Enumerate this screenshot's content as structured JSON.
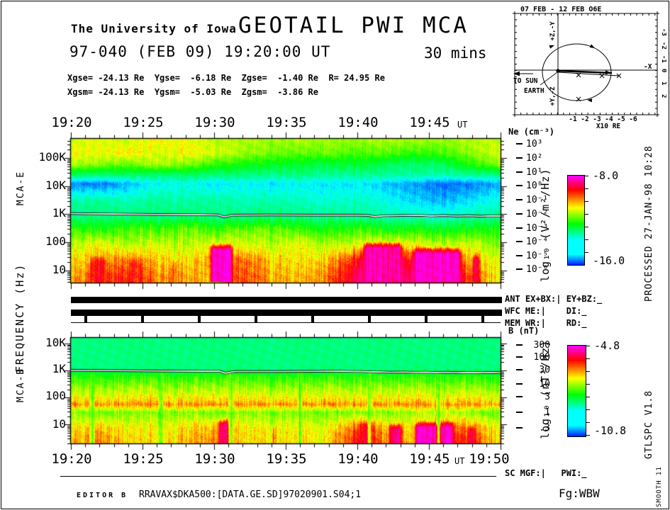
{
  "header": {
    "institution": "The University of Iowa",
    "title": "GEOTAIL PWI MCA",
    "date_line": "97-040 (FEB 09) 19:20:00 UT",
    "duration": "30 mins",
    "coords_line1": "Xgse= -24.13 Re  Ygse=  -6.18 Re  Zgse=  -1.40 Re  R= 24.95 Re",
    "coords_line2": "Xgsm= -24.13 Re  Ygsm=  -5.03 Re  Zgsm=  -3.86 Re"
  },
  "orbit_inset": {
    "title": "07 FEB - 12 FEB  O6E",
    "axis_top": "+Z,-Y",
    "axis_bottom": "+Y,-Z",
    "axis_right": "-X",
    "to_sun": "TO SUN",
    "earth": "EARTH",
    "x_unit": "X10 RE",
    "x_ticks": [
      "-1",
      "-2",
      "-3",
      "-4",
      "-5",
      "-6"
    ],
    "y_ticks": [
      "-3",
      "-2",
      "-1",
      "0",
      "1",
      "2"
    ]
  },
  "axes": {
    "top_time_labels": [
      "19:20",
      "19:25",
      "19:30",
      "19:35",
      "19:40",
      "19:45"
    ],
    "bottom_time_labels": [
      "19:20",
      "19:25",
      "19:30",
      "19:35",
      "19:40",
      "19:45",
      "19:50"
    ],
    "ut": "UT",
    "mca_e_freq_labels": [
      "100K",
      "10K",
      "1K",
      "100",
      "10"
    ],
    "mca_b_freq_labels": [
      "10K",
      "1K",
      "100",
      "10"
    ],
    "ylabel_mca_e": "MCA-E",
    "ylabel_frequency": "FREQUENCY (Hz)",
    "ylabel_mca_b": "MCA-B"
  },
  "ne_scale": {
    "label": "Ne (cm⁻³)",
    "values": [
      "10³",
      "10²",
      "10¹",
      "10⁰",
      "10⁻¹",
      "10⁻²",
      "10⁻³",
      "10⁻⁴",
      "10⁻⁵",
      "10⁻⁶"
    ]
  },
  "b_scale": {
    "label": "B (nT)",
    "values": [
      "300",
      "100",
      "30",
      "10",
      "3",
      "1",
      ".3"
    ]
  },
  "colorbar_e": {
    "max": "-8.0",
    "min": "-16.0",
    "unit": "log₁₀ (V²/m²/Hz)"
  },
  "colorbar_b": {
    "max": "-4.8",
    "min": "-10.8",
    "unit": "log₁₀ (nT²/Hz)"
  },
  "status": {
    "ant": "ANT EX+BX:| EY+BZ:_",
    "wfc": "WFC ME:|    DI:_",
    "mem": "MEM WR:|    RD:_",
    "sc_mgf": "SC MGF:|   PWI:_"
  },
  "sidebar_right": {
    "processed": "PROCESSED 27-JAN-98  10:28",
    "version": "GTLSPC    V1.8",
    "smooth": "SMOOTH 11"
  },
  "footer": {
    "editor": "EDITOR B",
    "file": "RRAVAX$DKA500:[DATA.GE.SD]97020901.S04;1",
    "fg": "Fg:WBW"
  },
  "chart_data": [
    {
      "type": "heatmap",
      "name": "MCA-E electric field spectrogram",
      "x_start": "19:20:00 UT",
      "x_minutes": 30,
      "ylabel": "Frequency (Hz)",
      "freq_top": 480000,
      "freq_bottom": 3.7,
      "zunit": "log₁₀ (V²/m²/Hz)",
      "zmax": -8.0,
      "zmin": -16.0,
      "bands": [
        {
          "f": 400000,
          "levels": [
            0.58,
            0.6,
            0.58,
            0.62,
            0.6,
            0.57,
            0.55,
            0.54,
            0.55,
            0.54,
            0.53,
            0.55,
            0.54,
            0.53,
            0.56,
            0.58
          ]
        },
        {
          "f": 150000,
          "levels": [
            0.62,
            0.6,
            0.64,
            0.58,
            0.62,
            0.59,
            0.54,
            0.51,
            0.49,
            0.51,
            0.47,
            0.49,
            0.45,
            0.47,
            0.53,
            0.6
          ]
        },
        {
          "f": 60000,
          "levels": [
            0.56,
            0.53,
            0.5,
            0.56,
            0.52,
            0.46,
            0.42,
            0.4,
            0.38,
            0.36,
            0.38,
            0.34,
            0.32,
            0.34,
            0.44,
            0.54
          ]
        },
        {
          "f": 25000,
          "levels": [
            0.33,
            0.31,
            0.33,
            0.31,
            0.33,
            0.31,
            0.3,
            0.29,
            0.3,
            0.28,
            0.28,
            0.28,
            0.27,
            0.26,
            0.28,
            0.3
          ]
        },
        {
          "f": 12000,
          "levels": [
            0.08,
            0.06,
            0.12,
            0.18,
            0.2,
            0.16,
            0.18,
            0.16,
            0.18,
            0.16,
            0.17,
            0.13,
            0.1,
            0.05,
            0.07,
            0.12
          ]
        },
        {
          "f": 3000,
          "levels": [
            0.26,
            0.28,
            0.25,
            0.28,
            0.26,
            0.28,
            0.24,
            0.26,
            0.24,
            0.22,
            0.24,
            0.2,
            0.15,
            0.12,
            0.16,
            0.22
          ]
        },
        {
          "f": 800,
          "levels": [
            0.3,
            0.31,
            0.32,
            0.3,
            0.32,
            0.3,
            0.3,
            0.32,
            0.3,
            0.3,
            0.28,
            0.27,
            0.25,
            0.23,
            0.27,
            0.3
          ]
        },
        {
          "f": 300,
          "levels": [
            0.46,
            0.42,
            0.48,
            0.45,
            0.5,
            0.45,
            0.48,
            0.5,
            0.45,
            0.42,
            0.45,
            0.41,
            0.42,
            0.39,
            0.41,
            0.45
          ]
        },
        {
          "f": 90,
          "levels": [
            0.56,
            0.61,
            0.55,
            0.58,
            0.55,
            0.6,
            0.58,
            0.56,
            0.6,
            0.55,
            0.58,
            0.62,
            0.6,
            0.56,
            0.58,
            0.52
          ]
        },
        {
          "f": 25,
          "levels": [
            0.63,
            0.68,
            0.72,
            0.65,
            0.62,
            0.68,
            0.72,
            0.65,
            0.62,
            0.66,
            0.8,
            0.84,
            0.8,
            0.76,
            0.66,
            0.6
          ]
        },
        {
          "f": 6,
          "levels": [
            0.68,
            0.76,
            0.8,
            0.7,
            0.68,
            0.66,
            0.75,
            0.68,
            0.66,
            0.72,
            0.88,
            0.9,
            0.88,
            0.84,
            0.76,
            0.62
          ]
        }
      ],
      "bursts": [
        {
          "t0": 9.6,
          "t1": 11.4,
          "f0": 4,
          "f1": 95,
          "level": 0.97
        },
        {
          "t0": 1.2,
          "t1": 2.6,
          "f0": 4,
          "f1": 35,
          "level": 0.8
        },
        {
          "t0": 3.9,
          "t1": 5.1,
          "f0": 4,
          "f1": 30,
          "level": 0.78
        },
        {
          "t0": 6.8,
          "t1": 7.6,
          "f0": 4,
          "f1": 25,
          "level": 0.74
        },
        {
          "t0": 17.0,
          "t1": 17.5,
          "f0": 4,
          "f1": 30,
          "level": 0.72
        },
        {
          "t0": 20.3,
          "t1": 23.3,
          "f0": 4,
          "f1": 110,
          "level": 0.93
        },
        {
          "t0": 23.8,
          "t1": 27.4,
          "f0": 4,
          "f1": 70,
          "level": 0.96
        },
        {
          "t0": 27.9,
          "t1": 28.7,
          "f0": 4,
          "f1": 45,
          "level": 0.85
        }
      ],
      "trace": [
        [
          0,
          1060
        ],
        [
          3,
          1020
        ],
        [
          6,
          980
        ],
        [
          9,
          960
        ],
        [
          10.3,
          940
        ],
        [
          10.7,
          800
        ],
        [
          11.3,
          930
        ],
        [
          14,
          940
        ],
        [
          17,
          930
        ],
        [
          20,
          930
        ],
        [
          20.8,
          900
        ],
        [
          21.2,
          820
        ],
        [
          21.8,
          880
        ],
        [
          23,
          900
        ],
        [
          24.5,
          910
        ],
        [
          25.2,
          870
        ],
        [
          26,
          900
        ],
        [
          27,
          860
        ],
        [
          27.8,
          890
        ],
        [
          28.6,
          850
        ],
        [
          29.3,
          880
        ],
        [
          30,
          870
        ]
      ]
    },
    {
      "type": "heatmap",
      "name": "MCA-B magnetic field spectrogram",
      "x_start": "19:20:00 UT",
      "x_minutes": 30,
      "ylabel": "Frequency (Hz)",
      "freq_top": 16000,
      "freq_bottom": 2.0,
      "zunit": "log₁₀ (nT²/Hz)",
      "zmax": -4.8,
      "zmin": -10.8,
      "bands": [
        {
          "f": 8000,
          "levels": [
            0.3,
            0.3,
            0.31,
            0.3,
            0.3,
            0.31,
            0.3,
            0.3,
            0.31,
            0.3,
            0.3,
            0.31,
            0.3,
            0.3,
            0.31,
            0.3
          ]
        },
        {
          "f": 1200,
          "levels": [
            0.3,
            0.3,
            0.3,
            0.31,
            0.3,
            0.3,
            0.31,
            0.3,
            0.3,
            0.31,
            0.3,
            0.3,
            0.31,
            0.3,
            0.3,
            0.3
          ]
        },
        {
          "f": 600,
          "levels": [
            0.44,
            0.43,
            0.45,
            0.44,
            0.43,
            0.45,
            0.44,
            0.43,
            0.44,
            0.45,
            0.43,
            0.44,
            0.45,
            0.43,
            0.44,
            0.43
          ]
        },
        {
          "f": 250,
          "levels": [
            0.53,
            0.52,
            0.54,
            0.53,
            0.52,
            0.54,
            0.53,
            0.52,
            0.53,
            0.54,
            0.52,
            0.53,
            0.54,
            0.52,
            0.53,
            0.52
          ]
        },
        {
          "f": 80,
          "levels": [
            0.64,
            0.63,
            0.65,
            0.64,
            0.63,
            0.65,
            0.64,
            0.63,
            0.64,
            0.65,
            0.63,
            0.64,
            0.65,
            0.63,
            0.64,
            0.63
          ]
        },
        {
          "f": 55,
          "levels": [
            0.7,
            0.69,
            0.71,
            0.7,
            0.69,
            0.71,
            0.7,
            0.69,
            0.7,
            0.71,
            0.69,
            0.7,
            0.71,
            0.69,
            0.7,
            0.69
          ]
        },
        {
          "f": 28,
          "levels": [
            0.52,
            0.5,
            0.52,
            0.51,
            0.52,
            0.5,
            0.52,
            0.51,
            0.52,
            0.5,
            0.52,
            0.51,
            0.55,
            0.57,
            0.52,
            0.5
          ]
        },
        {
          "f": 8,
          "levels": [
            0.63,
            0.66,
            0.62,
            0.6,
            0.63,
            0.66,
            0.62,
            0.6,
            0.62,
            0.6,
            0.74,
            0.66,
            0.63,
            0.72,
            0.7,
            0.62
          ]
        },
        {
          "f": 3,
          "levels": [
            0.66,
            0.7,
            0.65,
            0.62,
            0.66,
            0.7,
            0.64,
            0.62,
            0.64,
            0.62,
            0.8,
            0.7,
            0.66,
            0.78,
            0.76,
            0.64
          ]
        }
      ],
      "bursts": [
        {
          "t0": 10.1,
          "t1": 11.2,
          "f0": 2,
          "f1": 18,
          "level": 0.88
        },
        {
          "t0": 13.9,
          "t1": 14.4,
          "f0": 2,
          "f1": 10,
          "level": 0.78
        },
        {
          "t0": 18.3,
          "t1": 18.8,
          "f0": 2,
          "f1": 8,
          "level": 0.72
        },
        {
          "t0": 20.2,
          "t1": 21.3,
          "f0": 2,
          "f1": 16,
          "level": 0.86
        },
        {
          "t0": 22.1,
          "t1": 23.3,
          "f0": 2,
          "f1": 12,
          "level": 0.9
        },
        {
          "t0": 23.9,
          "t1": 26.9,
          "f0": 2,
          "f1": 14,
          "level": 0.96
        },
        {
          "t0": 27.6,
          "t1": 28.4,
          "f0": 2,
          "f1": 10,
          "level": 0.86
        }
      ],
      "notches": {
        "t": [
          1.45,
          6.3,
          11.15,
          16.0,
          20.85,
          25.7
        ],
        "w": 0.22,
        "f_top": 950,
        "level": 0.46
      },
      "trace": [
        [
          0,
          1010
        ],
        [
          3,
          980
        ],
        [
          6,
          950
        ],
        [
          9,
          935
        ],
        [
          10.4,
          930
        ],
        [
          10.8,
          790
        ],
        [
          11.4,
          915
        ],
        [
          14,
          915
        ],
        [
          17,
          925
        ],
        [
          19,
          930
        ],
        [
          20.5,
          905
        ],
        [
          21.5,
          880
        ],
        [
          22.3,
          855
        ],
        [
          23.2,
          870
        ],
        [
          24,
          850
        ],
        [
          24.8,
          865
        ],
        [
          25.5,
          840
        ],
        [
          26.3,
          860
        ],
        [
          27,
          830
        ],
        [
          27.7,
          850
        ],
        [
          28.4,
          825
        ],
        [
          29.2,
          845
        ],
        [
          30,
          835
        ]
      ]
    }
  ]
}
